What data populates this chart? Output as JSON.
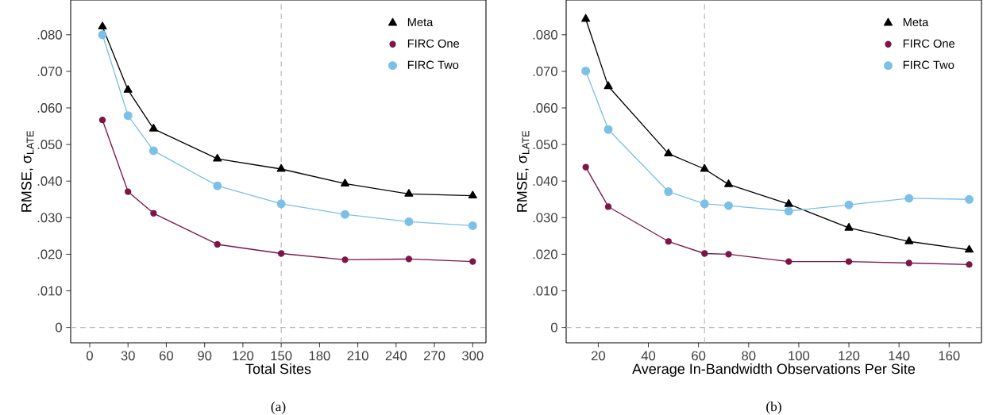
{
  "chart_data": [
    {
      "type": "line",
      "xlabel": "Total Sites",
      "ylabel": "RMSE, σ$_{LATE}$",
      "xlim": [
        -14.9,
        310.4
      ],
      "ylim": [
        -0.0042,
        0.0895
      ],
      "xticks": [
        0,
        30,
        60,
        90,
        120,
        150,
        180,
        210,
        240,
        270,
        300
      ],
      "yticks": [
        {
          "value": 0,
          "label": "0"
        },
        {
          "value": 0.01,
          "label": ".010"
        },
        {
          "value": 0.02,
          "label": ".020"
        },
        {
          "value": 0.03,
          "label": ".030"
        },
        {
          "value": 0.04,
          "label": ".040"
        },
        {
          "value": 0.05,
          "label": ".050"
        },
        {
          "value": 0.06,
          "label": ".060"
        },
        {
          "value": 0.07,
          "label": ".070"
        },
        {
          "value": 0.08,
          "label": ".080"
        }
      ],
      "x": [
        10,
        30,
        50,
        100,
        150,
        200,
        250,
        300
      ],
      "series": [
        {
          "name": "Meta",
          "color": "#000000",
          "marker": "triangle",
          "values": [
            0.0822,
            0.0649,
            0.0543,
            0.0461,
            0.0433,
            0.0393,
            0.0365,
            0.036
          ]
        },
        {
          "name": "FIRC One",
          "color": "#7b1646",
          "marker": "circle",
          "values": [
            0.0567,
            0.0371,
            0.0312,
            0.0227,
            0.0202,
            0.0185,
            0.0187,
            0.018
          ]
        },
        {
          "name": "FIRC Two",
          "color": "#7cc0e8",
          "marker": "circle",
          "values": [
            0.08,
            0.0579,
            0.0483,
            0.0387,
            0.0338,
            0.0309,
            0.0289,
            0.0278
          ]
        }
      ],
      "legend": "top right",
      "ref_lines": [
        {
          "axis": "x",
          "value": 150,
          "color": "#b3b3b3",
          "line_style": "dashed"
        },
        {
          "axis": "y",
          "value": 0,
          "color": "#b3b3b3",
          "line_style": "dashed"
        }
      ],
      "annotations": [
        "(a)"
      ]
    },
    {
      "type": "line",
      "xlabel": "Average In-Bandwidth Observations Per Site",
      "ylabel": "RMSE, σ$_{LATE}$",
      "xlim": [
        7.2,
        172.9
      ],
      "ylim": [
        -0.0042,
        0.0895
      ],
      "xticks": [
        20,
        40,
        60,
        80,
        100,
        120,
        140,
        160
      ],
      "yticks": [
        {
          "value": 0,
          "label": "0"
        },
        {
          "value": 0.01,
          "label": ".010"
        },
        {
          "value": 0.02,
          "label": ".020"
        },
        {
          "value": 0.03,
          "label": ".030"
        },
        {
          "value": 0.04,
          "label": ".040"
        },
        {
          "value": 0.05,
          "label": ".050"
        },
        {
          "value": 0.06,
          "label": ".060"
        },
        {
          "value": 0.07,
          "label": ".070"
        },
        {
          "value": 0.08,
          "label": ".080"
        }
      ],
      "x": [
        15,
        24,
        48,
        62.4,
        72,
        96,
        120,
        144,
        168
      ],
      "series": [
        {
          "name": "Meta",
          "color": "#000000",
          "marker": "triangle",
          "values": [
            0.0843,
            0.0659,
            0.0475,
            0.0433,
            0.0391,
            0.0337,
            0.0272,
            0.0235,
            0.0212
          ]
        },
        {
          "name": "FIRC One",
          "color": "#7b1646",
          "marker": "circle",
          "values": [
            0.0438,
            0.033,
            0.0235,
            0.0202,
            0.02,
            0.018,
            0.018,
            0.0176,
            0.0172
          ]
        },
        {
          "name": "FIRC Two",
          "color": "#7cc0e8",
          "marker": "circle",
          "values": [
            0.0701,
            0.0541,
            0.0371,
            0.0338,
            0.0333,
            0.0318,
            0.0335,
            0.0353,
            0.035
          ]
        }
      ],
      "legend": "top right",
      "ref_lines": [
        {
          "axis": "x",
          "value": 62.4,
          "color": "#b3b3b3",
          "line_style": "dashed"
        },
        {
          "axis": "y",
          "value": 0,
          "color": "#b3b3b3",
          "line_style": "dashed"
        }
      ],
      "annotations": [
        "(b)"
      ]
    }
  ]
}
